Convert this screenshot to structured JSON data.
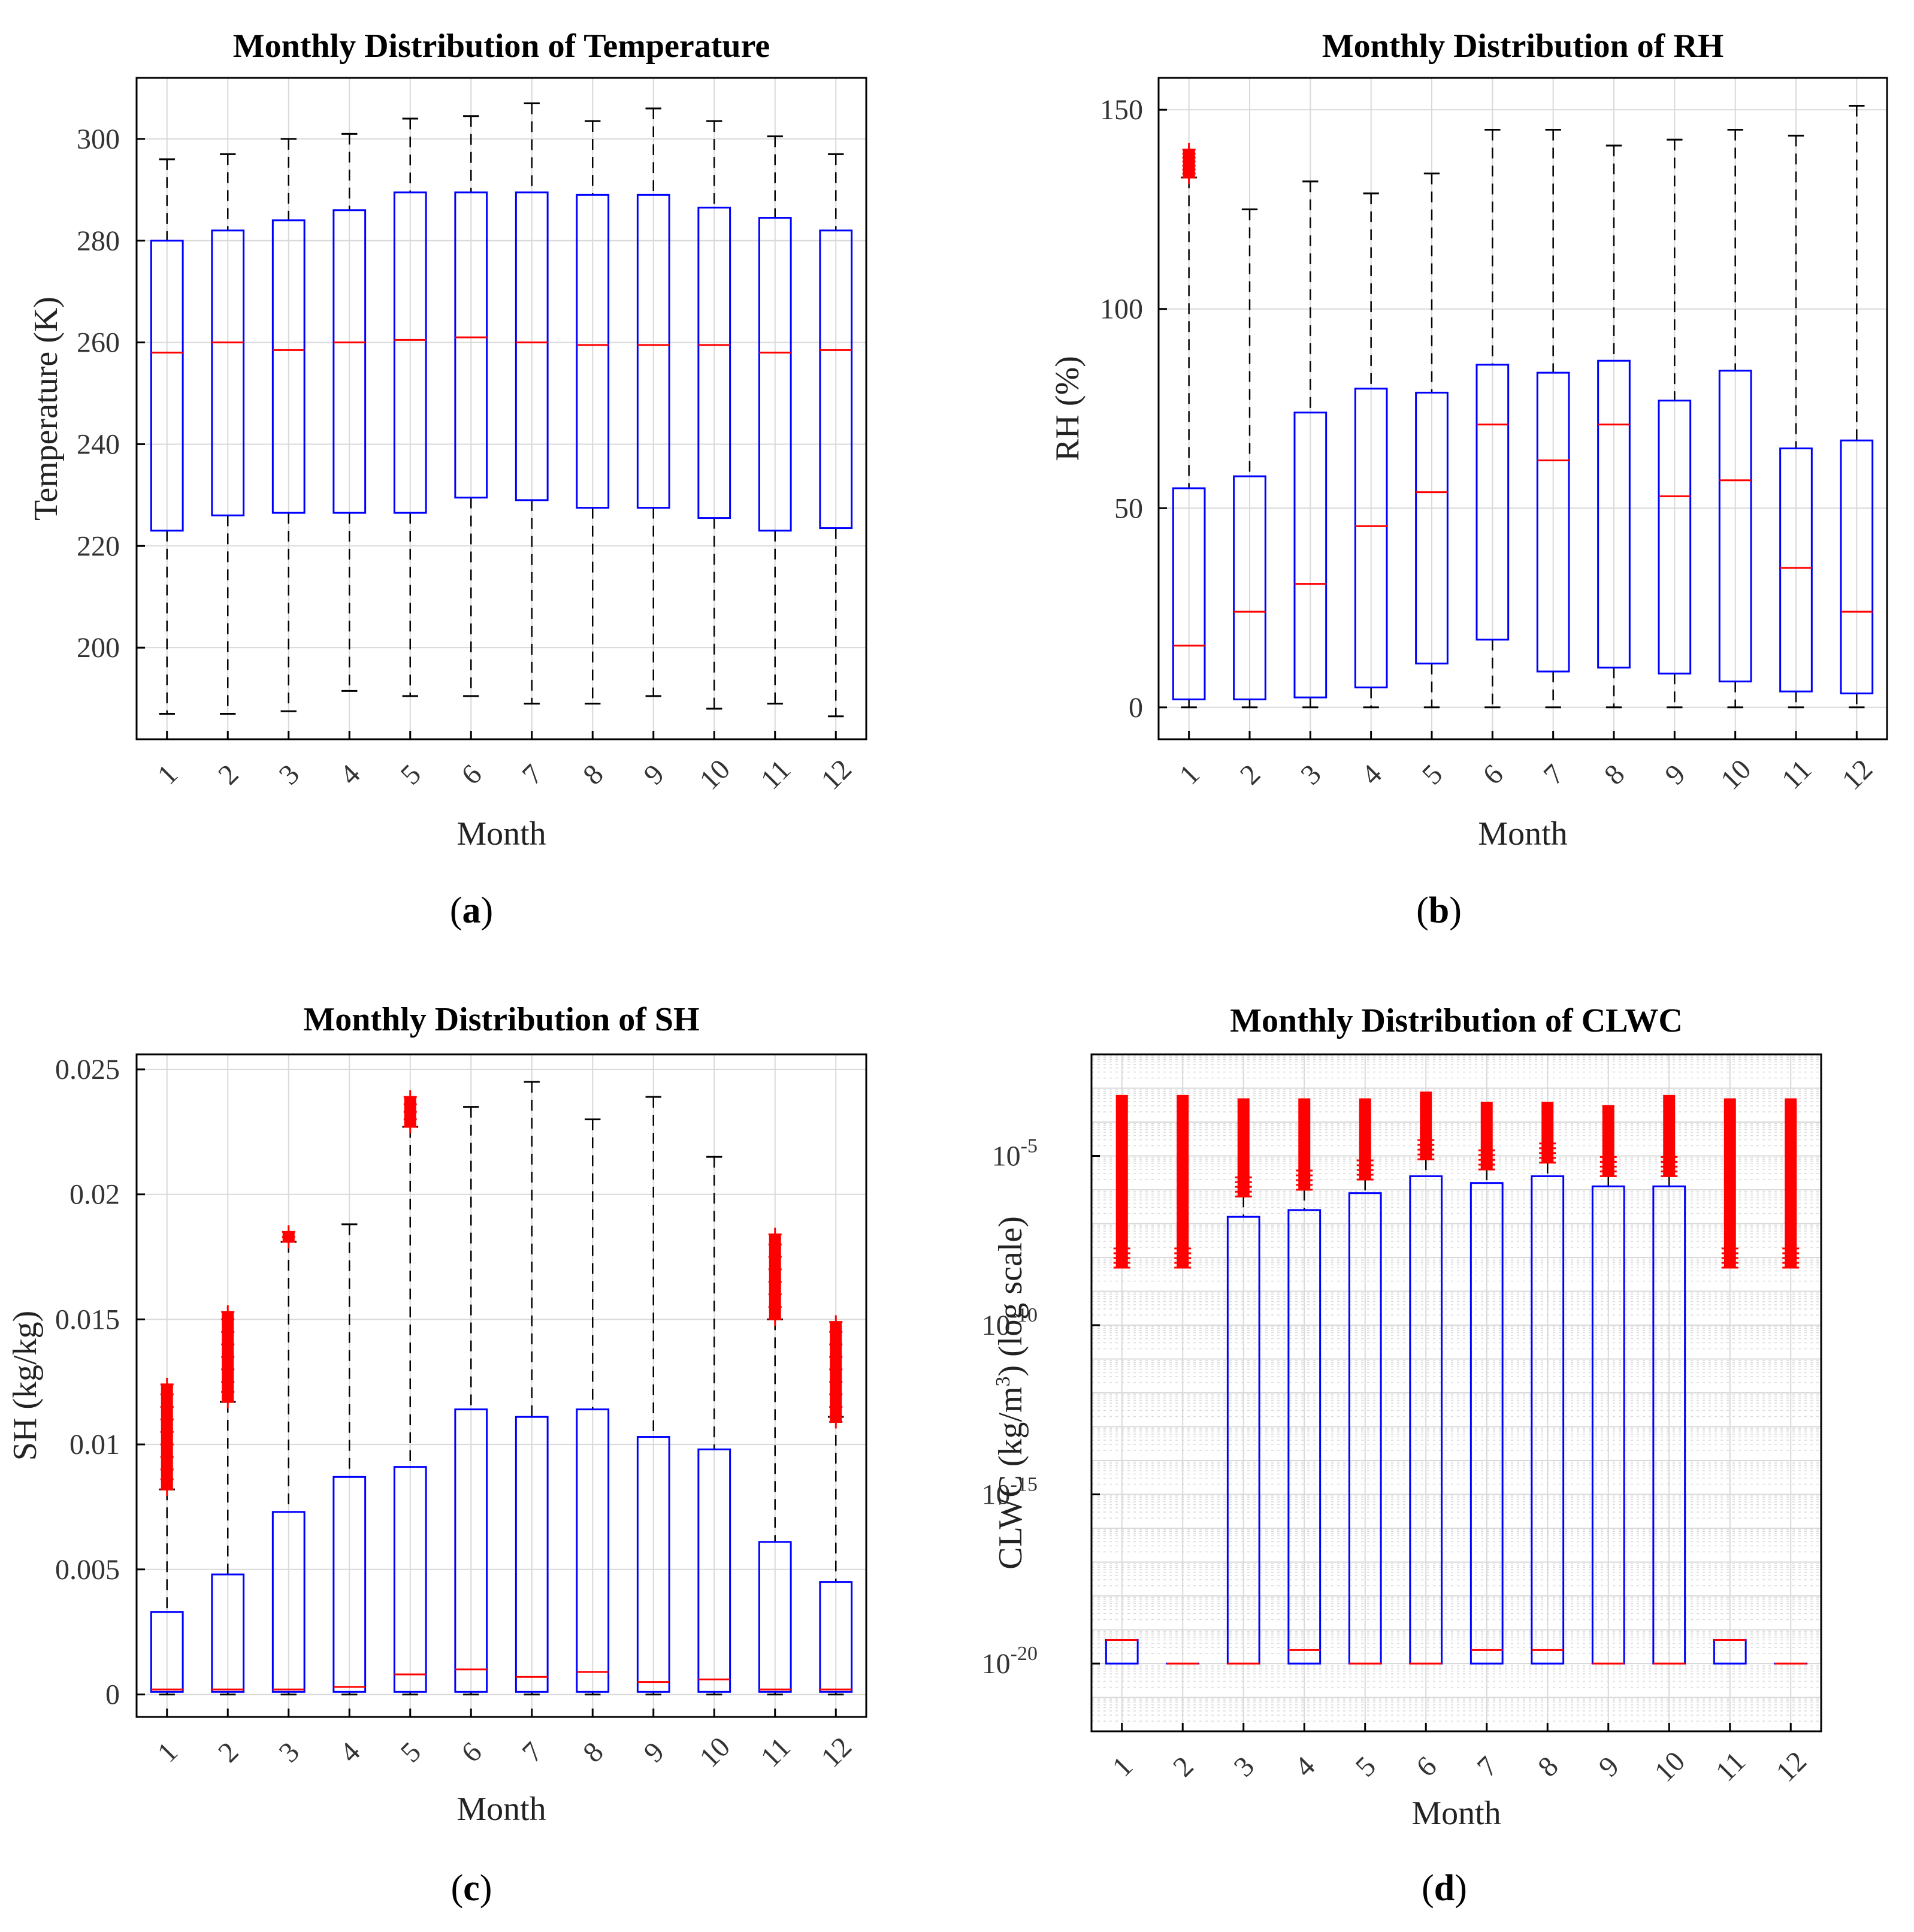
{
  "colors": {
    "box": "#0000ff",
    "median": "#ff0000",
    "outlier": "#ff0000",
    "whisker": "#000000",
    "grid": "#d9d9d9",
    "axis": "#000000"
  },
  "chart_data": [
    {
      "type": "boxplot",
      "caption_letter": "a",
      "title": "Monthly Distribution of Temperature",
      "xlabel": "Month",
      "ylabel": "Temperature (K)",
      "yscale": "linear",
      "ylim": [
        182,
        312
      ],
      "yticks": [
        200,
        220,
        240,
        260,
        280,
        300
      ],
      "ytick_labels": [
        "200",
        "220",
        "240",
        "260",
        "280",
        "300"
      ],
      "categories": [
        "1",
        "2",
        "3",
        "4",
        "5",
        "6",
        "7",
        "8",
        "9",
        "10",
        "11",
        "12"
      ],
      "series": [
        {
          "month": "1",
          "whisker_low": 187,
          "q1": 223,
          "median": 258,
          "q3": 280,
          "whisker_high": 296,
          "outliers": []
        },
        {
          "month": "2",
          "whisker_low": 187,
          "q1": 226,
          "median": 260,
          "q3": 282,
          "whisker_high": 297,
          "outliers": []
        },
        {
          "month": "3",
          "whisker_low": 187.5,
          "q1": 226.5,
          "median": 258.5,
          "q3": 284,
          "whisker_high": 300,
          "outliers": []
        },
        {
          "month": "4",
          "whisker_low": 191.5,
          "q1": 226.5,
          "median": 260,
          "q3": 286,
          "whisker_high": 301,
          "outliers": []
        },
        {
          "month": "5",
          "whisker_low": 190.5,
          "q1": 226.5,
          "median": 260.5,
          "q3": 289.5,
          "whisker_high": 304,
          "outliers": []
        },
        {
          "month": "6",
          "whisker_low": 190.5,
          "q1": 229.5,
          "median": 261,
          "q3": 289.5,
          "whisker_high": 304.5,
          "outliers": []
        },
        {
          "month": "7",
          "whisker_low": 189,
          "q1": 229,
          "median": 260,
          "q3": 289.5,
          "whisker_high": 307,
          "outliers": []
        },
        {
          "month": "8",
          "whisker_low": 189,
          "q1": 227.5,
          "median": 259.5,
          "q3": 289,
          "whisker_high": 303.5,
          "outliers": []
        },
        {
          "month": "9",
          "whisker_low": 190.5,
          "q1": 227.5,
          "median": 259.5,
          "q3": 289,
          "whisker_high": 306,
          "outliers": []
        },
        {
          "month": "10",
          "whisker_low": 188,
          "q1": 225.5,
          "median": 259.5,
          "q3": 286.5,
          "whisker_high": 303.5,
          "outliers": []
        },
        {
          "month": "11",
          "whisker_low": 189,
          "q1": 223,
          "median": 258,
          "q3": 284.5,
          "whisker_high": 300.5,
          "outliers": []
        },
        {
          "month": "12",
          "whisker_low": 186.5,
          "q1": 223.5,
          "median": 258.5,
          "q3": 282,
          "whisker_high": 297,
          "outliers": []
        }
      ]
    },
    {
      "type": "boxplot",
      "caption_letter": "b",
      "title": "Monthly Distribution of RH",
      "xlabel": "Month",
      "ylabel": "RH (%)",
      "yscale": "linear",
      "ylim": [
        -8,
        158
      ],
      "yticks": [
        0,
        50,
        100,
        150
      ],
      "ytick_labels": [
        "0",
        "50",
        "100",
        "150"
      ],
      "categories": [
        "1",
        "2",
        "3",
        "4",
        "5",
        "6",
        "7",
        "8",
        "9",
        "10",
        "11",
        "12"
      ],
      "series": [
        {
          "month": "1",
          "whisker_low": 0,
          "q1": 2,
          "median": 15.5,
          "q3": 55,
          "whisker_high": 133,
          "outliers": [
            133,
            134,
            135,
            136,
            137,
            138,
            139,
            140
          ]
        },
        {
          "month": "2",
          "whisker_low": 0,
          "q1": 2,
          "median": 24,
          "q3": 58,
          "whisker_high": 125,
          "outliers": []
        },
        {
          "month": "3",
          "whisker_low": 0,
          "q1": 2.5,
          "median": 31,
          "q3": 74,
          "whisker_high": 132,
          "outliers": []
        },
        {
          "month": "4",
          "whisker_low": 0,
          "q1": 5,
          "median": 45.5,
          "q3": 80,
          "whisker_high": 129,
          "outliers": []
        },
        {
          "month": "5",
          "whisker_low": 0,
          "q1": 11,
          "median": 54,
          "q3": 79,
          "whisker_high": 134,
          "outliers": []
        },
        {
          "month": "6",
          "whisker_low": 0,
          "q1": 17,
          "median": 71,
          "q3": 86,
          "whisker_high": 145,
          "outliers": []
        },
        {
          "month": "7",
          "whisker_low": 0,
          "q1": 9,
          "median": 62,
          "q3": 84,
          "whisker_high": 145,
          "outliers": []
        },
        {
          "month": "8",
          "whisker_low": 0,
          "q1": 10,
          "median": 71,
          "q3": 87,
          "whisker_high": 141,
          "outliers": []
        },
        {
          "month": "9",
          "whisker_low": 0,
          "q1": 8.5,
          "median": 53,
          "q3": 77,
          "whisker_high": 142.5,
          "outliers": []
        },
        {
          "month": "10",
          "whisker_low": 0,
          "q1": 6.5,
          "median": 57,
          "q3": 84.5,
          "whisker_high": 145,
          "outliers": []
        },
        {
          "month": "11",
          "whisker_low": 0,
          "q1": 4,
          "median": 35,
          "q3": 65,
          "whisker_high": 143.5,
          "outliers": []
        },
        {
          "month": "12",
          "whisker_low": 0,
          "q1": 3.5,
          "median": 24,
          "q3": 67,
          "whisker_high": 151,
          "outliers": []
        }
      ]
    },
    {
      "type": "boxplot",
      "caption_letter": "c",
      "title": "Monthly Distribution of SH",
      "xlabel": "Month",
      "ylabel": "SH (kg/kg)",
      "yscale": "linear",
      "ylim": [
        -0.0009,
        0.0256
      ],
      "yticks": [
        0,
        0.005,
        0.01,
        0.015,
        0.02,
        0.025
      ],
      "ytick_labels": [
        "0",
        "0.005",
        "0.01",
        "0.015",
        "0.02",
        "0.025"
      ],
      "categories": [
        "1",
        "2",
        "3",
        "4",
        "5",
        "6",
        "7",
        "8",
        "9",
        "10",
        "11",
        "12"
      ],
      "series": [
        {
          "month": "1",
          "whisker_low": 0,
          "q1": 0.0001,
          "median": 0.0002,
          "q3": 0.0033,
          "whisker_high": 0.0082,
          "outliers": [
            0.0082,
            0.0086,
            0.009,
            0.0095,
            0.01,
            0.0105,
            0.011,
            0.0115,
            0.012,
            0.0124
          ]
        },
        {
          "month": "2",
          "whisker_low": 0,
          "q1": 0.0001,
          "median": 0.0002,
          "q3": 0.0048,
          "whisker_high": 0.0117,
          "outliers": [
            0.0117,
            0.0121,
            0.0125,
            0.013,
            0.0135,
            0.014,
            0.0145,
            0.015,
            0.0153
          ]
        },
        {
          "month": "3",
          "whisker_low": 0,
          "q1": 0.0001,
          "median": 0.0002,
          "q3": 0.0073,
          "whisker_high": 0.0181,
          "outliers": [
            0.0181,
            0.0183,
            0.0185
          ]
        },
        {
          "month": "4",
          "whisker_low": 0,
          "q1": 0.0001,
          "median": 0.0003,
          "q3": 0.0087,
          "whisker_high": 0.0188,
          "outliers": []
        },
        {
          "month": "5",
          "whisker_low": 0,
          "q1": 0.0001,
          "median": 0.0008,
          "q3": 0.0091,
          "whisker_high": 0.0227,
          "outliers": [
            0.0227,
            0.023,
            0.0233,
            0.0236,
            0.0239
          ]
        },
        {
          "month": "6",
          "whisker_low": 0,
          "q1": 0.0001,
          "median": 0.001,
          "q3": 0.0114,
          "whisker_high": 0.0235,
          "outliers": []
        },
        {
          "month": "7",
          "whisker_low": 0,
          "q1": 0.0001,
          "median": 0.0007,
          "q3": 0.0111,
          "whisker_high": 0.0245,
          "outliers": []
        },
        {
          "month": "8",
          "whisker_low": 0,
          "q1": 0.0001,
          "median": 0.0009,
          "q3": 0.0114,
          "whisker_high": 0.023,
          "outliers": []
        },
        {
          "month": "9",
          "whisker_low": 0,
          "q1": 0.0001,
          "median": 0.0005,
          "q3": 0.0103,
          "whisker_high": 0.0239,
          "outliers": []
        },
        {
          "month": "10",
          "whisker_low": 0,
          "q1": 0.0001,
          "median": 0.0006,
          "q3": 0.0098,
          "whisker_high": 0.0215,
          "outliers": []
        },
        {
          "month": "11",
          "whisker_low": 0,
          "q1": 0.0001,
          "median": 0.0002,
          "q3": 0.0061,
          "whisker_high": 0.015,
          "outliers": [
            0.015,
            0.0155,
            0.016,
            0.0165,
            0.017,
            0.0175,
            0.018,
            0.0184
          ]
        },
        {
          "month": "12",
          "whisker_low": 0,
          "q1": 0.0001,
          "median": 0.0002,
          "q3": 0.0045,
          "whisker_high": 0.0111,
          "outliers": [
            0.0109,
            0.0111,
            0.0115,
            0.012,
            0.0125,
            0.013,
            0.0135,
            0.014,
            0.0145,
            0.0149
          ]
        }
      ]
    },
    {
      "type": "boxplot",
      "caption_letter": "d",
      "title": "Monthly Distribution of CLWC",
      "xlabel": "Month",
      "ylabel_main": "CLWC (kg/m",
      "ylabel_sup": "3",
      "ylabel_tail": ") (log scale)",
      "yscale": "log",
      "ylim_log10": [
        -22,
        -2
      ],
      "ytick_exponents": [
        -20,
        -15,
        -10,
        -5
      ],
      "ytick_base": "10",
      "ytick_exponent_labels": [
        "-20",
        "-15",
        "-10",
        "-5"
      ],
      "categories": [
        "1",
        "2",
        "3",
        "4",
        "5",
        "6",
        "7",
        "8",
        "9",
        "10",
        "11",
        "12"
      ],
      "series_log10": [
        {
          "month": "1",
          "whisker_low": -20,
          "q1": -20,
          "median": -19.3,
          "q3": -19.3,
          "whisker_high": -19.3,
          "outliers_range": [
            -8.3,
            -3.2
          ]
        },
        {
          "month": "2",
          "whisker_low": -20,
          "q1": -20,
          "median": -20,
          "q3": -20,
          "whisker_high": -20,
          "outliers_range": [
            -8.3,
            -3.2
          ]
        },
        {
          "month": "3",
          "whisker_low": -20,
          "q1": -20,
          "median": -20,
          "q3": -6.8,
          "whisker_high": -6.2,
          "outliers_range": [
            -6.2,
            -3.3
          ]
        },
        {
          "month": "4",
          "whisker_low": -20,
          "q1": -20,
          "median": -19.6,
          "q3": -6.6,
          "whisker_high": -6,
          "outliers_range": [
            -6,
            -3.3
          ]
        },
        {
          "month": "5",
          "whisker_low": -20,
          "q1": -20,
          "median": -20,
          "q3": -6.1,
          "whisker_high": -5.7,
          "outliers_range": [
            -5.7,
            -3.3
          ]
        },
        {
          "month": "6",
          "whisker_low": -20,
          "q1": -20,
          "median": -20,
          "q3": -5.6,
          "whisker_high": -5.1,
          "outliers_range": [
            -5.1,
            -3.1
          ]
        },
        {
          "month": "7",
          "whisker_low": -20,
          "q1": -20,
          "median": -19.6,
          "q3": -5.8,
          "whisker_high": -5.4,
          "outliers_range": [
            -5.4,
            -3.4
          ]
        },
        {
          "month": "8",
          "whisker_low": -20,
          "q1": -20,
          "median": -19.6,
          "q3": -5.6,
          "whisker_high": -5.2,
          "outliers_range": [
            -5.2,
            -3.4
          ]
        },
        {
          "month": "9",
          "whisker_low": -20,
          "q1": -20,
          "median": -20,
          "q3": -5.9,
          "whisker_high": -5.6,
          "outliers_range": [
            -5.6,
            -3.5
          ]
        },
        {
          "month": "10",
          "whisker_low": -20,
          "q1": -20,
          "median": -20,
          "q3": -5.9,
          "whisker_high": -5.6,
          "outliers_range": [
            -5.6,
            -3.2
          ]
        },
        {
          "month": "11",
          "whisker_low": -20,
          "q1": -20,
          "median": -19.3,
          "q3": -19.3,
          "whisker_high": -19.3,
          "outliers_range": [
            -8.3,
            -3.3
          ]
        },
        {
          "month": "12",
          "whisker_low": -20,
          "q1": -20,
          "median": -20,
          "q3": -20,
          "whisker_high": -20,
          "outliers_range": [
            -8.3,
            -3.3
          ]
        }
      ]
    }
  ]
}
